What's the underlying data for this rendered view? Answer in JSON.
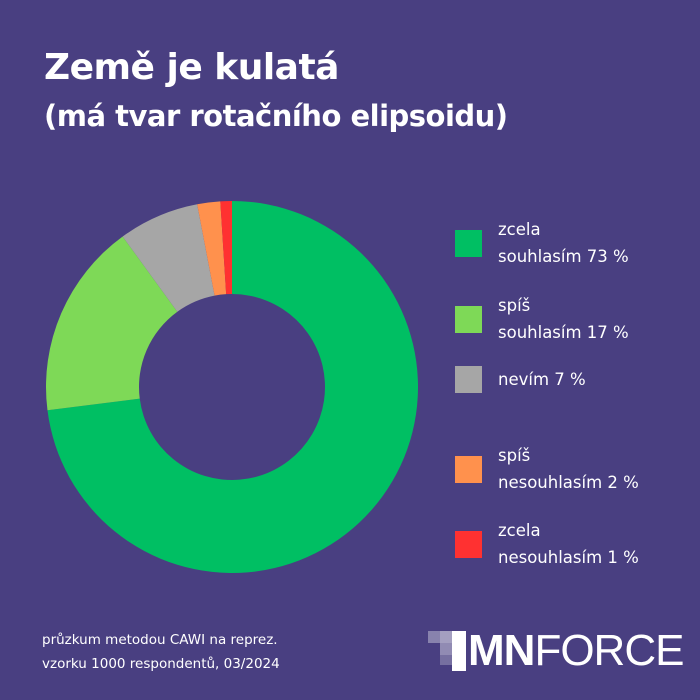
{
  "header": {
    "title": "Země je kulatá",
    "subtitle": "(má tvar rotačního elipsoidu)"
  },
  "chart_data": {
    "type": "pie",
    "variant": "donut",
    "start": "top, clockwise",
    "legend_position": "right",
    "categories": [
      "zcela souhlasím",
      "spíš souhlasím",
      "nevím",
      "spíš nesouhlasím",
      "zcela nesouhlasím"
    ],
    "values": [
      73,
      17,
      7,
      2,
      1
    ],
    "unit": "%",
    "colors": [
      "#00bf63",
      "#7ed957",
      "#a6a6a6",
      "#ff914d",
      "#ff3131"
    ],
    "legend": [
      {
        "line1": "zcela",
        "line2": "souhlasím 73 %"
      },
      {
        "line1": "spíš",
        "line2": "souhlasím 17 %"
      },
      {
        "line1": "",
        "line2": "nevím 7 %"
      },
      {
        "line1": "spíš",
        "line2": "nesouhlasím 2 %"
      },
      {
        "line1": "zcela",
        "line2": "nesouhlasím 1 %"
      }
    ]
  },
  "footer": {
    "note_line1": "průzkum metodou CAWI na reprez.",
    "note_line2": "vzorku 1000 respondentů, 03/2024",
    "logo_bold": "MN",
    "logo_light": "FORCE"
  },
  "colors": {
    "background": "#493f81",
    "text": "#ffffff"
  }
}
